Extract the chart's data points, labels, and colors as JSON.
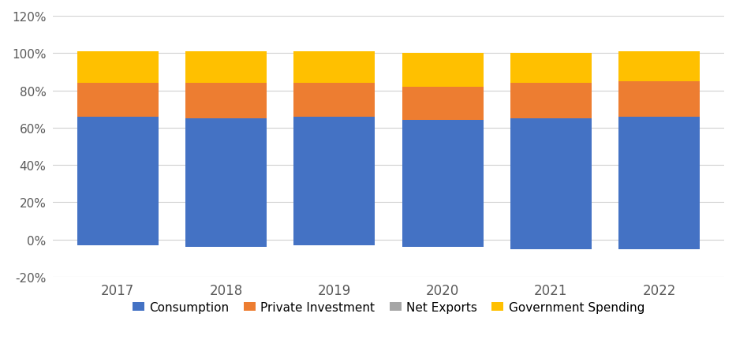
{
  "years": [
    "2017",
    "2018",
    "2019",
    "2020",
    "2021",
    "2022"
  ],
  "consumption": [
    69,
    69,
    69,
    68,
    70,
    71
  ],
  "private_investment": [
    18,
    19,
    18,
    18,
    19,
    19
  ],
  "net_exports": [
    -3,
    -4,
    -3,
    -4,
    -5,
    -5
  ],
  "government_spending": [
    17,
    17,
    17,
    18,
    16,
    16
  ],
  "colors": {
    "consumption": "#4472C4",
    "private_investment": "#ED7D31",
    "net_exports": "#A5A5A5",
    "government_spending": "#FFC000"
  },
  "legend_labels": [
    "Consumption",
    "Private Investment",
    "Net Exports",
    "Government Spending"
  ],
  "ylim": [
    -20,
    120
  ],
  "yticks": [
    -20,
    0,
    20,
    40,
    60,
    80,
    100,
    120
  ],
  "background_color": "#FFFFFF",
  "grid_color": "#D0D0D0",
  "bar_width": 0.75
}
